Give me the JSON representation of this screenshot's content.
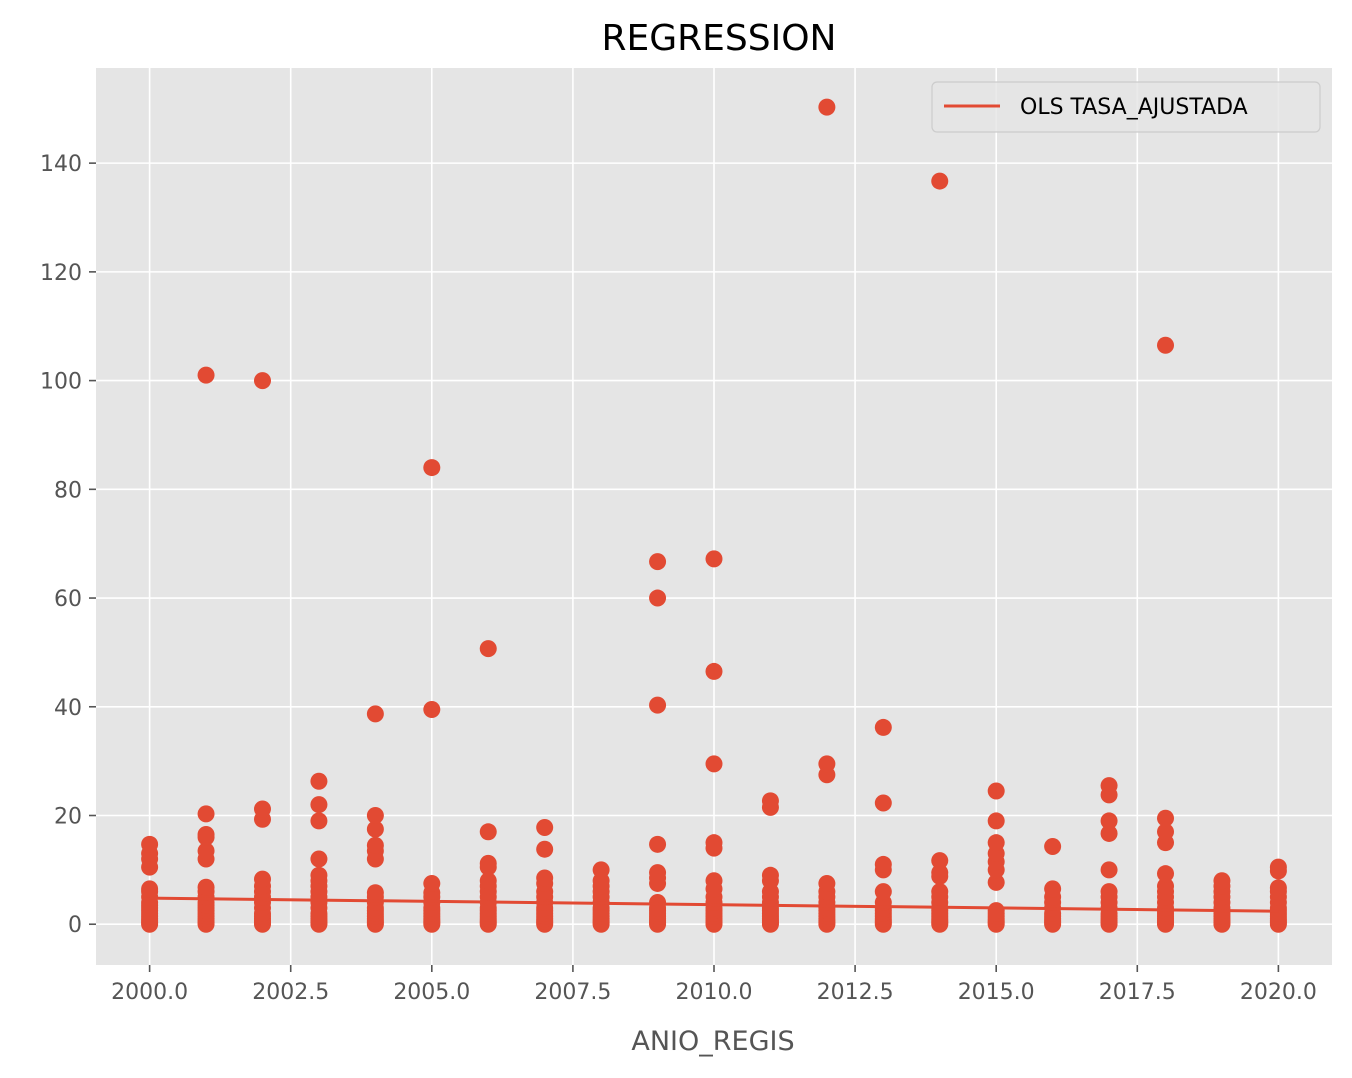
{
  "chart_data": {
    "type": "scatter",
    "title": "REGRESSION",
    "xlabel": "ANIO_REGIS",
    "ylabel": "",
    "xlim": [
      1999.05,
      2020.95
    ],
    "ylim": [
      -7.5,
      157.5
    ],
    "x_ticks": [
      2000.0,
      2002.5,
      2005.0,
      2007.5,
      2010.0,
      2012.5,
      2015.0,
      2017.5,
      2020.0
    ],
    "x_tick_labels": [
      "2000.0",
      "2002.5",
      "2005.0",
      "2007.5",
      "2010.0",
      "2012.5",
      "2015.0",
      "2017.5",
      "2020.0"
    ],
    "y_ticks": [
      0,
      20,
      40,
      60,
      80,
      100,
      120,
      140
    ],
    "y_tick_labels": [
      "0",
      "20",
      "40",
      "60",
      "80",
      "100",
      "120",
      "140"
    ],
    "grid": true,
    "legend": {
      "position": "top-right",
      "entries": [
        "OLS TASA_AJUSTADA"
      ]
    },
    "colors": {
      "points": "#E24A33",
      "line": "#E24A33",
      "plot_bg": "#E5E5E5",
      "grid": "#FFFFFF"
    },
    "series": [
      {
        "type": "scatter",
        "points": [
          {
            "year": 2000,
            "values": [
              0,
              0.3,
              0.6,
              1,
              1.5,
              2,
              2.5,
              3,
              3.5,
              4,
              5,
              6,
              6.5,
              10.5,
              12,
              13,
              14.7
            ]
          },
          {
            "year": 2001,
            "values": [
              0,
              0.3,
              0.6,
              1,
              1.5,
              2,
              2.5,
              3,
              3.5,
              4,
              5,
              6,
              6.8,
              12,
              13.5,
              16,
              16.5,
              20.3,
              101
            ]
          },
          {
            "year": 2002,
            "values": [
              0,
              0.3,
              0.6,
              1,
              1.5,
              2,
              3,
              4,
              5,
              6,
              7,
              8.3,
              19.3,
              21.2,
              100
            ]
          },
          {
            "year": 2003,
            "values": [
              0,
              0.3,
              0.6,
              1,
              1.5,
              2,
              3,
              4,
              5,
              6,
              7,
              8,
              9,
              12,
              19,
              22,
              26.3
            ]
          },
          {
            "year": 2004,
            "values": [
              0,
              0.3,
              0.6,
              1,
              1.5,
              2,
              2.5,
              3,
              4,
              5,
              5.8,
              12,
              13.5,
              14.5,
              17.5,
              20,
              38.7
            ]
          },
          {
            "year": 2005,
            "values": [
              0,
              0.3,
              0.6,
              1,
              1.5,
              2,
              2.5,
              3,
              4,
              5,
              5.8,
              7.5,
              39.5,
              84
            ]
          },
          {
            "year": 2006,
            "values": [
              0,
              0.3,
              0.6,
              1,
              1.5,
              2,
              2.5,
              3,
              4,
              5,
              6,
              7,
              8,
              10.5,
              11.2,
              17,
              50.7
            ]
          },
          {
            "year": 2007,
            "values": [
              0,
              0.3,
              0.6,
              1,
              1.5,
              2,
              2.5,
              3,
              4,
              5,
              6,
              7.5,
              8.5,
              13.8,
              17.8
            ]
          },
          {
            "year": 2008,
            "values": [
              0,
              0.3,
              0.6,
              1,
              1.5,
              2,
              2.5,
              3,
              4,
              5,
              6,
              7,
              8,
              10
            ]
          },
          {
            "year": 2009,
            "values": [
              0,
              0.3,
              0.6,
              1,
              1.5,
              2,
              2.5,
              3,
              4,
              7.5,
              8.5,
              9.5,
              14.7,
              40.3,
              60,
              66.7
            ]
          },
          {
            "year": 2010,
            "values": [
              0,
              0.3,
              0.6,
              1,
              1.5,
              2,
              2.5,
              3,
              4,
              5,
              6.5,
              8,
              14,
              15,
              29.5,
              46.5,
              67.2
            ]
          },
          {
            "year": 2011,
            "values": [
              0,
              0.3,
              0.6,
              1,
              1.5,
              2,
              2.5,
              3,
              4,
              5,
              6,
              8,
              9,
              21.5,
              22.7
            ]
          },
          {
            "year": 2012,
            "values": [
              0,
              0.3,
              0.6,
              1,
              1.5,
              2,
              2.5,
              3,
              4,
              5,
              6,
              7.5,
              27.5,
              29.5,
              150.3
            ]
          },
          {
            "year": 2013,
            "values": [
              0,
              0.3,
              0.6,
              1,
              1.5,
              2,
              2.5,
              3,
              4,
              6,
              10,
              11,
              22.3,
              36.2
            ]
          },
          {
            "year": 2014,
            "values": [
              0,
              0.3,
              0.6,
              1,
              1.5,
              2,
              2.5,
              3,
              4,
              5,
              6,
              8.8,
              9.5,
              11.7,
              136.7
            ]
          },
          {
            "year": 2015,
            "values": [
              0,
              0.3,
              0.6,
              1,
              1.5,
              2,
              2.5,
              7.7,
              10,
              11.5,
              13,
              15,
              19,
              24.5
            ]
          },
          {
            "year": 2016,
            "values": [
              0,
              0.3,
              0.6,
              1,
              1.5,
              2,
              3,
              4,
              5,
              6.5,
              14.3
            ]
          },
          {
            "year": 2017,
            "values": [
              0,
              0.3,
              0.6,
              1,
              1.5,
              2,
              3,
              4,
              5,
              6,
              10,
              16.7,
              19,
              23.8,
              25.5
            ]
          },
          {
            "year": 2018,
            "values": [
              0,
              0.3,
              0.6,
              1,
              1.5,
              2,
              2.5,
              3,
              4,
              5,
              6,
              7,
              9.3,
              15,
              17,
              19.5,
              106.5
            ]
          },
          {
            "year": 2019,
            "values": [
              0,
              0.3,
              0.6,
              1,
              1.5,
              2,
              2.5,
              3,
              4,
              5,
              6,
              7,
              8
            ]
          },
          {
            "year": 2020,
            "values": [
              0,
              0.3,
              0.6,
              1,
              1.5,
              2,
              2.5,
              3,
              4,
              5,
              6,
              6.7,
              9.8,
              10.5
            ]
          }
        ]
      },
      {
        "type": "line",
        "name": "OLS TASA_AJUSTADA",
        "x": [
          2000,
          2020
        ],
        "y": [
          4.8,
          2.4
        ]
      }
    ]
  }
}
